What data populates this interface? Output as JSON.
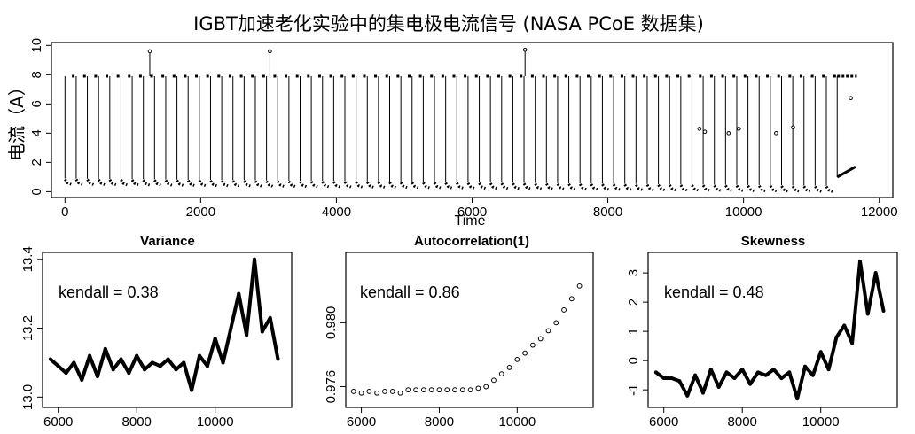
{
  "figure_title": "IGBT加速老化实验中的集电极电流信号 (NASA PCoE 数据集)",
  "chart_data": [
    {
      "id": "current",
      "type": "line",
      "title": "",
      "xlabel": "Time",
      "ylabel": "电流（A）",
      "xlim": [
        -200,
        12200
      ],
      "ylim": [
        -0.4,
        10.2
      ],
      "xticks": [
        "0",
        "2000",
        "4000",
        "6000",
        "8000",
        "10000",
        "12000"
      ],
      "yticks": [
        "0",
        "2",
        "4",
        "6",
        "8",
        "10"
      ],
      "high_level": 7.9,
      "low_level_start": 0.7,
      "low_level_end": 0.2,
      "pulse_period": 165,
      "pulse_start": 0,
      "pulse_end": 11300,
      "spikes": [
        {
          "x": 1250,
          "y": 9.6
        },
        {
          "x": 3020,
          "y": 9.6
        },
        {
          "x": 6780,
          "y": 9.7
        }
      ],
      "outlier_points": [
        {
          "x": 9350,
          "y": 4.3
        },
        {
          "x": 9430,
          "y": 4.1
        },
        {
          "x": 9780,
          "y": 4.0
        },
        {
          "x": 9930,
          "y": 4.3
        },
        {
          "x": 10480,
          "y": 4.0
        },
        {
          "x": 10730,
          "y": 4.4
        },
        {
          "x": 11580,
          "y": 6.4
        }
      ],
      "tail_segment": {
        "x_start": 11380,
        "x_end": 11650,
        "y_start": 1.0,
        "y_end": 1.7
      }
    },
    {
      "id": "variance",
      "type": "line",
      "title": "Variance",
      "annotation": "kendall = 0.38",
      "xlim": [
        5600,
        11950
      ],
      "ylim": [
        12.97,
        13.42
      ],
      "xticks": [
        "6000",
        "8000",
        "10000"
      ],
      "yticks": [
        "13.0",
        "13.2",
        "13.4"
      ],
      "x": [
        5800,
        6000,
        6200,
        6400,
        6600,
        6800,
        7000,
        7200,
        7400,
        7600,
        7800,
        8000,
        8200,
        8400,
        8600,
        8800,
        9000,
        9200,
        9400,
        9600,
        9800,
        10000,
        10200,
        10400,
        10600,
        10800,
        11000,
        11200,
        11400,
        11600
      ],
      "values": [
        13.11,
        13.09,
        13.07,
        13.1,
        13.05,
        13.12,
        13.06,
        13.14,
        13.08,
        13.11,
        13.07,
        13.12,
        13.08,
        13.1,
        13.09,
        13.11,
        13.08,
        13.1,
        13.02,
        13.12,
        13.09,
        13.17,
        13.1,
        13.2,
        13.3,
        13.18,
        13.4,
        13.19,
        13.23,
        13.11
      ]
    },
    {
      "id": "autocorrelation",
      "type": "scatter",
      "title": "Autocorrelation(1)",
      "annotation": "kendall = 0.86",
      "xlim": [
        5600,
        11950
      ],
      "ylim": [
        0.9747,
        0.9844
      ],
      "xticks": [
        "6000",
        "8000",
        "10000"
      ],
      "yticks": [
        "0.976",
        "0.980"
      ],
      "x": [
        5800,
        6000,
        6200,
        6400,
        6600,
        6800,
        7000,
        7200,
        7400,
        7600,
        7800,
        8000,
        8200,
        8400,
        8600,
        8800,
        9000,
        9200,
        9400,
        9600,
        9800,
        10000,
        10200,
        10400,
        10600,
        10800,
        11000,
        11200,
        11400,
        11600
      ],
      "values": [
        0.9757,
        0.9756,
        0.9757,
        0.9756,
        0.9757,
        0.9757,
        0.9756,
        0.9758,
        0.9758,
        0.9758,
        0.9758,
        0.9758,
        0.9758,
        0.9758,
        0.9758,
        0.9758,
        0.9759,
        0.976,
        0.9764,
        0.9768,
        0.9772,
        0.9777,
        0.9781,
        0.9786,
        0.979,
        0.9795,
        0.98,
        0.9808,
        0.9815,
        0.9823
      ]
    },
    {
      "id": "skewness",
      "type": "line",
      "title": "Skewness",
      "annotation": "kendall = 0.48",
      "xlim": [
        5600,
        11950
      ],
      "ylim": [
        -1.6,
        3.7
      ],
      "xticks": [
        "6000",
        "8000",
        "10000"
      ],
      "yticks": [
        "-1",
        "0",
        "1",
        "2",
        "3"
      ],
      "x": [
        5800,
        6000,
        6200,
        6400,
        6600,
        6800,
        7000,
        7200,
        7400,
        7600,
        7800,
        8000,
        8200,
        8400,
        8600,
        8800,
        9000,
        9200,
        9400,
        9600,
        9800,
        10000,
        10200,
        10400,
        10600,
        10800,
        11000,
        11200,
        11400,
        11600
      ],
      "values": [
        -0.4,
        -0.6,
        -0.6,
        -0.7,
        -1.2,
        -0.5,
        -1.1,
        -0.3,
        -0.9,
        -0.4,
        -0.6,
        -0.3,
        -0.8,
        -0.4,
        -0.5,
        -0.3,
        -0.6,
        -0.4,
        -1.3,
        -0.2,
        -0.5,
        0.3,
        -0.3,
        0.8,
        1.2,
        0.6,
        3.4,
        1.6,
        3.0,
        1.7
      ]
    }
  ]
}
